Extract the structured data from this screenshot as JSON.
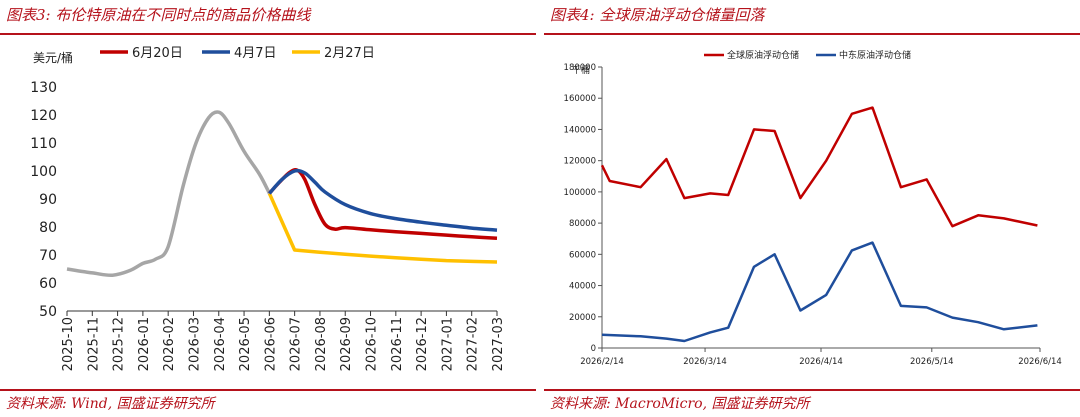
{
  "left": {
    "fig_title": "图表3:  布伦特原油在不同时点的商品价格曲线",
    "source": "资料来源:  Wind,  国盛证券研究所",
    "chart_data": {
      "type": "line",
      "ylabel": "美元/桶",
      "ylim": [
        50,
        130
      ],
      "yticks": [
        50,
        60,
        70,
        80,
        90,
        100,
        110,
        120,
        130
      ],
      "categories": [
        "2025-10",
        "2025-11",
        "2025-12",
        "2026-01",
        "2026-02",
        "2026-03",
        "2026-04",
        "2026-05",
        "2026-06",
        "2026-07",
        "2026-08",
        "2026-09",
        "2026-10",
        "2026-11",
        "2026-12",
        "2027-01",
        "2027-02",
        "2027-03"
      ],
      "legend_position": "top",
      "history": {
        "color": "#a6a6a6",
        "points": [
          [
            0,
            65
          ],
          [
            1,
            63.6
          ],
          [
            1.8,
            62.8
          ],
          [
            2.5,
            64.5
          ],
          [
            3,
            67
          ],
          [
            3.5,
            68.5
          ],
          [
            4,
            73
          ],
          [
            4.6,
            95
          ],
          [
            5.1,
            110
          ],
          [
            5.6,
            119
          ],
          [
            6,
            121
          ],
          [
            6.4,
            117
          ],
          [
            7,
            107
          ],
          [
            7.6,
            99
          ],
          [
            8,
            92
          ]
        ]
      },
      "series": [
        {
          "name": "6月20日",
          "color": "#c00000",
          "points": [
            [
              8,
              92
            ],
            [
              8.4,
              96
            ],
            [
              8.8,
              99.5
            ],
            [
              9.1,
              100.3
            ],
            [
              9.4,
              97
            ],
            [
              9.8,
              88
            ],
            [
              10.2,
              81
            ],
            [
              10.6,
              79.2
            ],
            [
              11,
              79.8
            ],
            [
              12,
              79
            ],
            [
              13,
              78.3
            ],
            [
              14,
              77.7
            ],
            [
              15,
              77.1
            ],
            [
              16,
              76.5
            ],
            [
              17,
              76
            ]
          ]
        },
        {
          "name": "4月7日",
          "color": "#1f4e9c",
          "points": [
            [
              8,
              92
            ],
            [
              8.5,
              97
            ],
            [
              9,
              100
            ],
            [
              9.4,
              99.3
            ],
            [
              9.8,
              96
            ],
            [
              10.2,
              92.5
            ],
            [
              11,
              88
            ],
            [
              12,
              84.8
            ],
            [
              13,
              83
            ],
            [
              14,
              81.7
            ],
            [
              15,
              80.6
            ],
            [
              16,
              79.6
            ],
            [
              17,
              78.9
            ]
          ]
        },
        {
          "name": "2月27日",
          "color": "#ffc000",
          "points": [
            [
              8,
              92
            ],
            [
              9,
              71.8
            ],
            [
              10,
              71
            ],
            [
              11,
              70.3
            ],
            [
              12,
              69.6
            ],
            [
              13,
              69
            ],
            [
              14,
              68.5
            ],
            [
              15,
              68
            ],
            [
              16,
              67.7
            ],
            [
              17,
              67.5
            ]
          ]
        }
      ]
    }
  },
  "right": {
    "fig_title": "图表4:  全球原油浮动仓储量回落",
    "source": "资料来源:  MacroMicro,  国盛证券研究所",
    "chart_data": {
      "type": "line",
      "ylabel": "千桶",
      "ylim": [
        0,
        180000
      ],
      "yticks": [
        0,
        20000,
        40000,
        60000,
        80000,
        100000,
        120000,
        140000,
        160000,
        180000
      ],
      "xlim": [
        0,
        17
      ],
      "xticks": [
        {
          "pos": 0,
          "label": "2026/2/14"
        },
        {
          "pos": 4,
          "label": "2026/3/14"
        },
        {
          "pos": 8.5,
          "label": "2026/4/14"
        },
        {
          "pos": 12.8,
          "label": "2026/5/14"
        },
        {
          "pos": 17,
          "label": "2026/6/14"
        }
      ],
      "legend_position": "top",
      "series": [
        {
          "name": "全球原油浮动仓储",
          "color": "#c00000",
          "points": [
            [
              0,
              117000
            ],
            [
              0.3,
              107000
            ],
            [
              1.5,
              103000
            ],
            [
              2.5,
              121000
            ],
            [
              3.2,
              96000
            ],
            [
              4.2,
              99000
            ],
            [
              4.9,
              98000
            ],
            [
              5.9,
              140000
            ],
            [
              6.7,
              139000
            ],
            [
              7.7,
              96000
            ],
            [
              8.7,
              120000
            ],
            [
              9.7,
              150000
            ],
            [
              10.5,
              154000
            ],
            [
              11.6,
              103000
            ],
            [
              12.6,
              108000
            ],
            [
              13.6,
              78000
            ],
            [
              14.6,
              85000
            ],
            [
              15.6,
              83000
            ],
            [
              16.9,
              78500
            ]
          ]
        },
        {
          "name": "中东原油浮动仓储",
          "color": "#1f4e9c",
          "points": [
            [
              0,
              8500
            ],
            [
              1.5,
              7500
            ],
            [
              2.5,
              6000
            ],
            [
              3.2,
              4500
            ],
            [
              4.2,
              10000
            ],
            [
              4.9,
              13000
            ],
            [
              5.9,
              52000
            ],
            [
              6.7,
              60000
            ],
            [
              7.7,
              24000
            ],
            [
              8.7,
              34000
            ],
            [
              9.7,
              62500
            ],
            [
              10.5,
              67500
            ],
            [
              11.6,
              27000
            ],
            [
              12.6,
              26000
            ],
            [
              13.6,
              19500
            ],
            [
              14.6,
              16500
            ],
            [
              15.6,
              12000
            ],
            [
              16.9,
              14500
            ]
          ]
        }
      ]
    }
  }
}
